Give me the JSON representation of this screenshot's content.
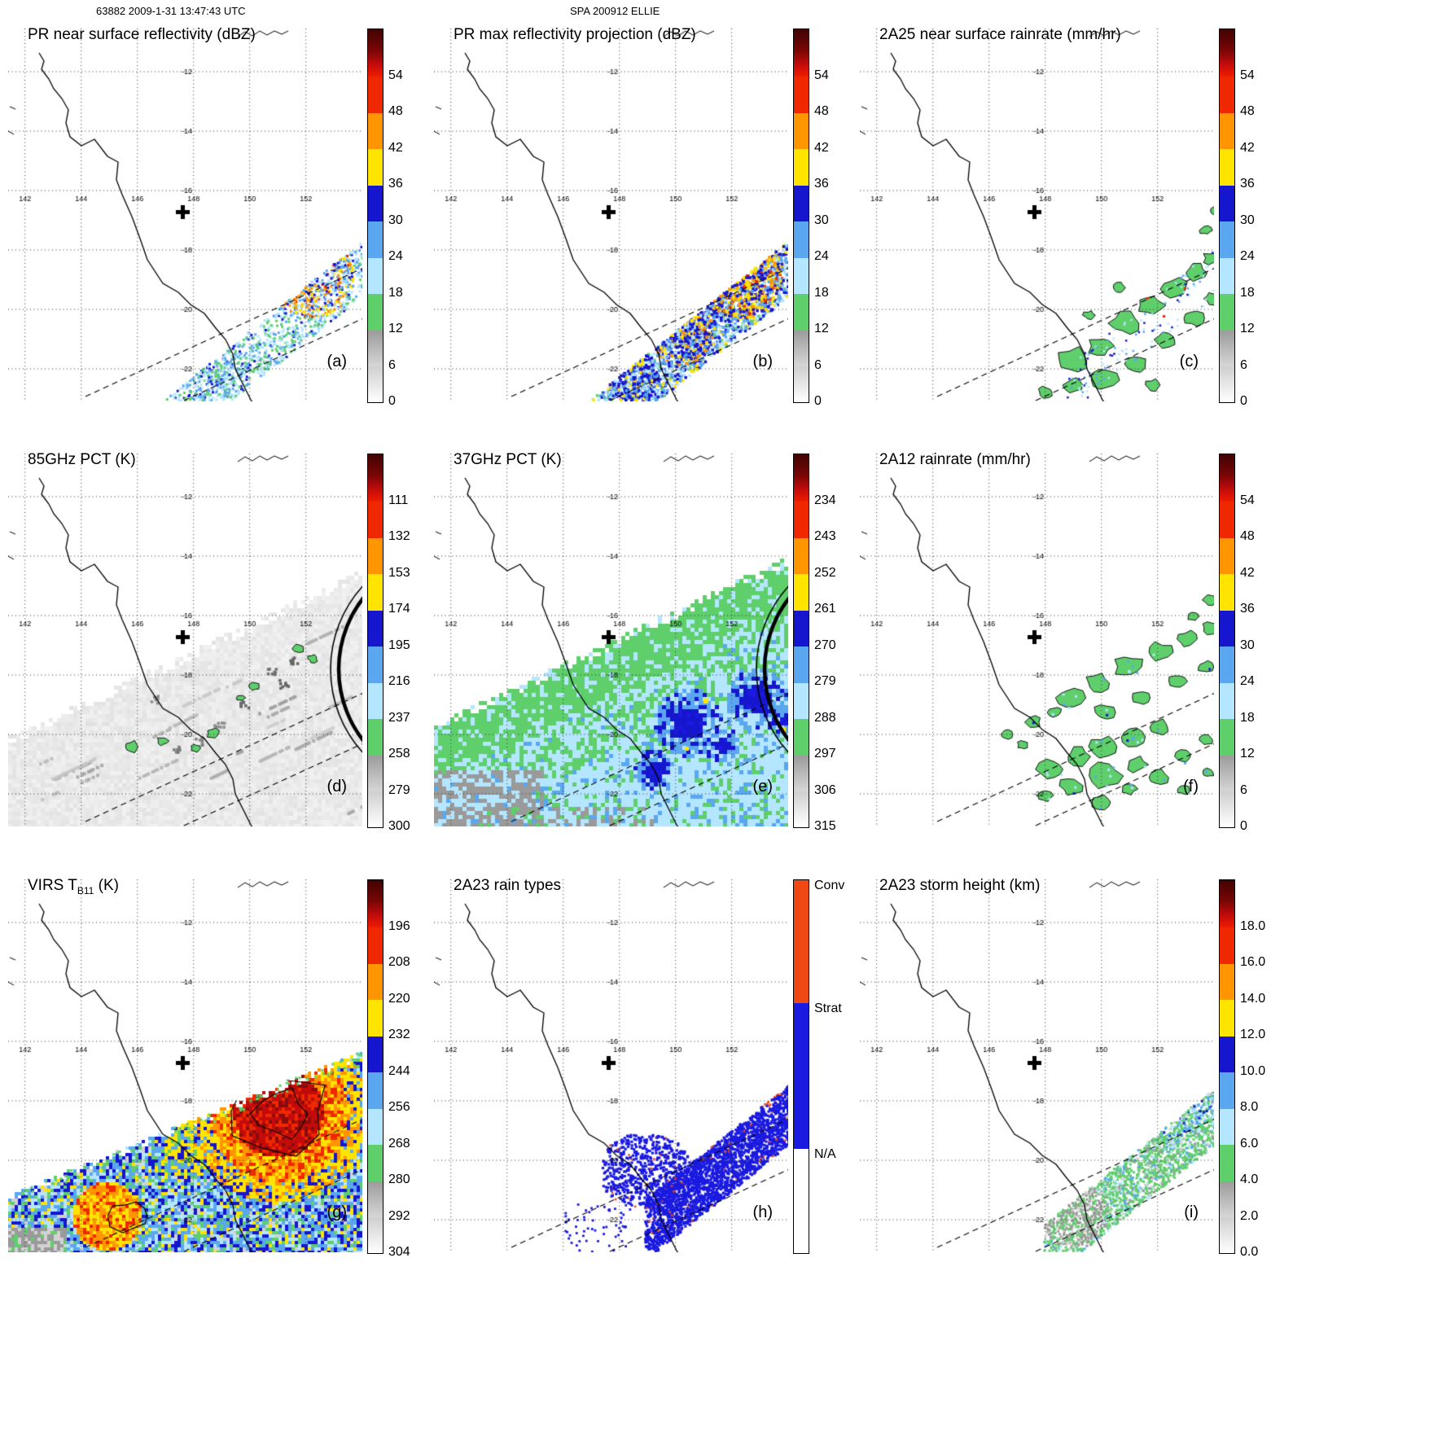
{
  "header": {
    "left": "63882 2009-1-31 13:47:43 UTC",
    "center": "SPA 200912 ELLIE"
  },
  "geo": {
    "lon_labels": [
      "142",
      "144",
      "146",
      "148",
      "150",
      "152"
    ],
    "lat_labels": [
      "-12",
      "-14",
      "-16",
      "-18",
      "-20",
      "-22"
    ]
  },
  "colors": {
    "green": "#5ecf6b",
    "pale_blue": "#b5e6ff",
    "mid_blue": "#5aa7f0",
    "blue": "#1616cf",
    "yellow": "#ffe400",
    "orange": "#ff9500",
    "red_orange": "#f02800",
    "red": "#c40b0b",
    "dark_red": "#8a0b0b",
    "gray_light": "#d2d2d2",
    "gray": "#9a9a9a",
    "conv": "#f04814",
    "strat": "#1a1ae0"
  },
  "colorbar": {
    "cap": "linear-gradient(to bottom,#400303,#7a0606 45%,#c40b0b 75%,#ef1c00 100%)",
    "segments_bottom_to_top": [
      "linear-gradient(to bottom,#cfcfcf,#ffffff)",
      "linear-gradient(to bottom,#9a9a9a,#d6d6d6)",
      "#5ecf6b",
      "#b5e6ff",
      "#5aa7f0",
      "#1616cf",
      "#ffe400",
      "#ff9500",
      "#f02800"
    ]
  },
  "panels": [
    {
      "id": "a",
      "style": "pr_a",
      "title": "PR near surface reflectivity (dBZ)",
      "label": "(a)",
      "colorbar": {
        "type": "ticks",
        "ticks": [
          "54",
          "48",
          "42",
          "36",
          "30",
          "24",
          "18",
          "12",
          "6",
          "0"
        ]
      }
    },
    {
      "id": "b",
      "style": "pr_b",
      "title": "PR max reflectivity projection (dBZ)",
      "label": "(b)",
      "colorbar": {
        "type": "ticks",
        "ticks": [
          "54",
          "48",
          "42",
          "36",
          "30",
          "24",
          "18",
          "12",
          "6",
          "0"
        ]
      }
    },
    {
      "id": "c",
      "style": "c25",
      "title": "2A25 near surface rainrate (mm/hr)",
      "label": "(c)",
      "colorbar": {
        "type": "ticks",
        "ticks": [
          "54",
          "48",
          "42",
          "36",
          "30",
          "24",
          "18",
          "12",
          "6",
          "0"
        ]
      }
    },
    {
      "id": "d",
      "style": "pct85",
      "title": "85GHz PCT (K)",
      "label": "(d)",
      "colorbar": {
        "type": "ticks",
        "ticks": [
          "111",
          "132",
          "153",
          "174",
          "195",
          "216",
          "237",
          "258",
          "279",
          "300"
        ]
      }
    },
    {
      "id": "e",
      "style": "pct37",
      "title": "37GHz PCT (K)",
      "label": "(e)",
      "colorbar": {
        "type": "ticks",
        "ticks": [
          "234",
          "243",
          "252",
          "261",
          "270",
          "279",
          "288",
          "297",
          "306",
          "315"
        ]
      }
    },
    {
      "id": "f",
      "style": "r2a12",
      "title": "2A12 rainrate (mm/hr)",
      "label": "(f)",
      "colorbar": {
        "type": "ticks",
        "ticks": [
          "54",
          "48",
          "42",
          "36",
          "30",
          "24",
          "18",
          "12",
          "6",
          "0"
        ]
      }
    },
    {
      "id": "g",
      "style": "virs",
      "title": "VIRS TB11 (K)",
      "title_parts": {
        "pre": "VIRS T",
        "sub": "B11",
        "post": " (K)"
      },
      "label": "(g)",
      "colorbar": {
        "type": "ticks",
        "ticks": [
          "196",
          "208",
          "220",
          "232",
          "244",
          "256",
          "268",
          "280",
          "292",
          "304"
        ]
      }
    },
    {
      "id": "h",
      "style": "rtype",
      "title": "2A23 rain types",
      "label": "(h)",
      "colorbar": {
        "type": "categories",
        "segments": [
          {
            "label": "Conv",
            "color": "#f04814",
            "frac": 0.33
          },
          {
            "label": "Strat",
            "color": "#1a1ae0",
            "frac": 0.39
          },
          {
            "label": "N/A",
            "color": "#ffffff",
            "frac": 0.28
          }
        ]
      }
    },
    {
      "id": "i",
      "style": "sheight",
      "title": "2A23 storm height (km)",
      "label": "(i)",
      "colorbar": {
        "type": "ticks",
        "ticks": [
          "18.0",
          "16.0",
          "14.0",
          "12.0",
          "10.0",
          "8.0",
          "6.0",
          "4.0",
          "2.0",
          "0.0"
        ]
      }
    }
  ],
  "chart_data": {
    "type": "map",
    "header_left": "63882 2009-1-31 13:47:43 UTC",
    "header_center": "SPA 200912 ELLIE",
    "map_grid": {
      "lon_ticks": [
        142,
        144,
        146,
        148,
        150,
        152
      ],
      "lat_ticks": [
        -12,
        -14,
        -16,
        -18,
        -20,
        -22
      ]
    },
    "panels": [
      {
        "panel": "(a)",
        "title": "PR near surface reflectivity (dBZ)",
        "unit": "dBZ",
        "colorbar_ticks": [
          54,
          48,
          42,
          36,
          30,
          24,
          18,
          12,
          6,
          0
        ]
      },
      {
        "panel": "(b)",
        "title": "PR max reflectivity projection (dBZ)",
        "unit": "dBZ",
        "colorbar_ticks": [
          54,
          48,
          42,
          36,
          30,
          24,
          18,
          12,
          6,
          0
        ]
      },
      {
        "panel": "(c)",
        "title": "2A25 near surface rainrate (mm/hr)",
        "unit": "mm/hr",
        "colorbar_ticks": [
          54,
          48,
          42,
          36,
          30,
          24,
          18,
          12,
          6,
          0
        ]
      },
      {
        "panel": "(d)",
        "title": "85GHz PCT (K)",
        "unit": "K",
        "colorbar_ticks": [
          111,
          132,
          153,
          174,
          195,
          216,
          237,
          258,
          279,
          300
        ]
      },
      {
        "panel": "(e)",
        "title": "37GHz PCT (K)",
        "unit": "K",
        "colorbar_ticks": [
          234,
          243,
          252,
          261,
          270,
          279,
          288,
          297,
          306,
          315
        ]
      },
      {
        "panel": "(f)",
        "title": "2A12 rainrate (mm/hr)",
        "unit": "mm/hr",
        "colorbar_ticks": [
          54,
          48,
          42,
          36,
          30,
          24,
          18,
          12,
          6,
          0
        ]
      },
      {
        "panel": "(g)",
        "title": "VIRS TB11 (K)",
        "unit": "K",
        "colorbar_ticks": [
          196,
          208,
          220,
          232,
          244,
          256,
          268,
          280,
          292,
          304
        ]
      },
      {
        "panel": "(h)",
        "title": "2A23 rain types",
        "categories": [
          "Conv",
          "Strat",
          "N/A"
        ]
      },
      {
        "panel": "(i)",
        "title": "2A23 storm height (km)",
        "unit": "km",
        "colorbar_ticks": [
          18.0,
          16.0,
          14.0,
          12.0,
          10.0,
          8.0,
          6.0,
          4.0,
          2.0,
          0.0
        ]
      }
    ]
  }
}
